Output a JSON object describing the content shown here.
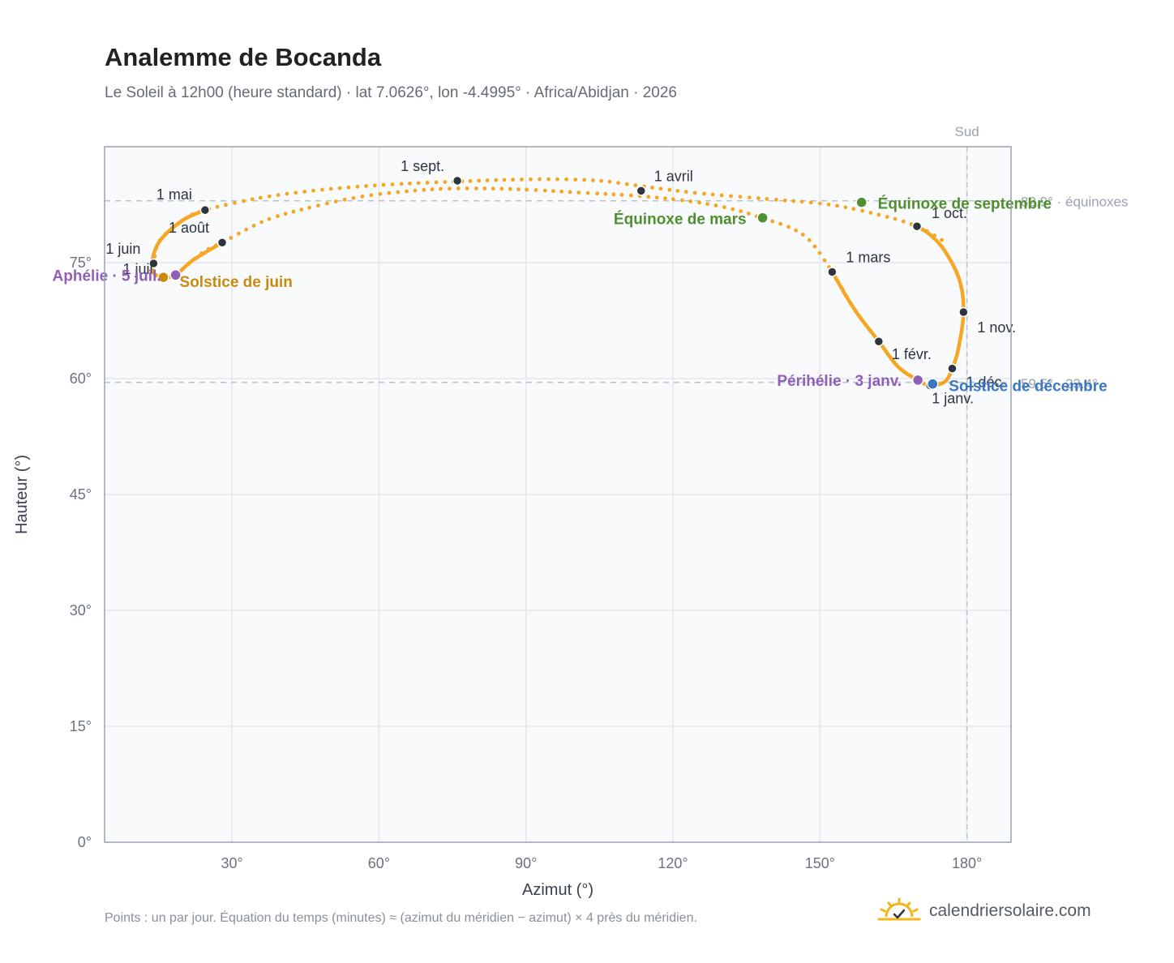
{
  "title": "Analemme de Bocanda",
  "subtitle": "Le Soleil à 12h00 (heure standard) · lat 7.0626°, lon -4.4995° · Africa/Abidjan · 2026",
  "footnote": "Points : un par jour. Équation du temps (minutes) ≈ (azimut du méridien − azimut) × 4 près du méridien.",
  "brand": "calendriersolaire.com",
  "colors": {
    "curve": "#f5a623",
    "month_marker": "#2d3440",
    "equinox": "#4f8f2f",
    "june_solstice": "#c98a10",
    "december_solstice": "#3a78c0",
    "apsis": "#9060b8",
    "plot_bg": "#f8fafc",
    "grid": "#e2e7ed",
    "axis": "#9aa3af",
    "ref_line": "#b7c2cb"
  },
  "chart_data": {
    "type": "scatter",
    "xlabel": "Azimut (°)",
    "ylabel": "Hauteur (°)",
    "xlim": [
      4,
      189
    ],
    "ylim": [
      0,
      90
    ],
    "x_ticks": [
      30,
      60,
      90,
      120,
      150,
      180
    ],
    "x_tick_labels": [
      "30°",
      "60°",
      "90°",
      "120°",
      "150°",
      "180°"
    ],
    "y_ticks": [
      0,
      15,
      30,
      45,
      60,
      75
    ],
    "y_tick_labels": [
      "0°",
      "15°",
      "30°",
      "45°",
      "60°",
      "75°"
    ],
    "grid": true,
    "south_line": {
      "x": 180,
      "label": "Sud"
    },
    "reference_lines": [
      {
        "y": 83.0,
        "label": "82.9° · équinoxes"
      },
      {
        "y": 59.5,
        "label": "59.5° · 23.4°"
      }
    ],
    "series": [
      {
        "style": "dotted",
        "points": [
          [
            14.0,
            73.7
          ],
          [
            15.0,
            77.6
          ],
          [
            20.0,
            80.5
          ],
          [
            24.5,
            81.8
          ],
          [
            35.0,
            83.3
          ],
          [
            45.0,
            84.2
          ],
          [
            55.0,
            84.8
          ],
          [
            65.0,
            85.2
          ],
          [
            76.0,
            85.5
          ],
          [
            85.0,
            85.7
          ],
          [
            95.0,
            85.8
          ],
          [
            105.0,
            85.6
          ],
          [
            113.5,
            84.9
          ],
          [
            125.0,
            84.0
          ],
          [
            140.0,
            83.2
          ],
          [
            152.0,
            82.5
          ],
          [
            162.0,
            81.2
          ],
          [
            169.8,
            79.7
          ],
          [
            176.0,
            77.5
          ]
        ]
      },
      {
        "style": "dotted",
        "points": [
          [
            18.5,
            73.4
          ],
          [
            24.0,
            76.3
          ],
          [
            28.0,
            77.6
          ],
          [
            37.0,
            80.5
          ],
          [
            47.0,
            82.3
          ],
          [
            57.0,
            83.6
          ],
          [
            67.0,
            84.3
          ],
          [
            76.0,
            84.6
          ],
          [
            88.0,
            84.5
          ],
          [
            100.0,
            84.1
          ],
          [
            113.5,
            83.6
          ],
          [
            125.0,
            82.8
          ],
          [
            133.0,
            81.8
          ],
          [
            138.0,
            80.8
          ],
          [
            144.0,
            79.5
          ],
          [
            148.0,
            77.8
          ],
          [
            152.5,
            73.8
          ],
          [
            157.0,
            69.0
          ],
          [
            162.0,
            64.8
          ],
          [
            166.0,
            61.5
          ],
          [
            170.0,
            59.8
          ]
        ]
      },
      {
        "style": "solid",
        "points": [
          [
            24.5,
            81.8
          ],
          [
            20.0,
            80.5
          ],
          [
            15.5,
            78.0
          ],
          [
            13.8,
            75.5
          ],
          [
            14.0,
            73.7
          ],
          [
            16.0,
            73.1
          ],
          [
            18.5,
            73.4
          ],
          [
            22.0,
            75.3
          ],
          [
            28.0,
            77.6
          ]
        ]
      },
      {
        "style": "solid",
        "points": [
          [
            152.5,
            73.8
          ],
          [
            157.0,
            69.0
          ],
          [
            162.0,
            64.8
          ],
          [
            166.0,
            61.5
          ],
          [
            170.0,
            59.8
          ],
          [
            172.5,
            59.1
          ],
          [
            175.5,
            59.6
          ],
          [
            177.0,
            61.3
          ],
          [
            178.3,
            64.0
          ],
          [
            179.3,
            68.6
          ],
          [
            178.5,
            72.7
          ],
          [
            175.5,
            76.5
          ],
          [
            172.5,
            78.6
          ],
          [
            169.8,
            79.7
          ]
        ]
      }
    ],
    "month_markers": [
      {
        "label": "1 janv.",
        "x": 172.5,
        "y": 59.1
      },
      {
        "label": "1 févr.",
        "x": 162.0,
        "y": 64.8
      },
      {
        "label": "1 mars",
        "x": 152.5,
        "y": 73.8
      },
      {
        "label": "1 avril",
        "x": 113.5,
        "y": 84.3
      },
      {
        "label": "1 mai",
        "x": 24.5,
        "y": 81.8
      },
      {
        "label": "1 juin",
        "x": 14.0,
        "y": 74.9
      },
      {
        "label": "1 juil.",
        "x": 16.0,
        "y": 73.1
      },
      {
        "label": "1 août",
        "x": 28.0,
        "y": 77.6
      },
      {
        "label": "1 sept.",
        "x": 76.0,
        "y": 85.6
      },
      {
        "label": "1 oct.",
        "x": 169.8,
        "y": 79.7
      },
      {
        "label": "1 nov.",
        "x": 179.3,
        "y": 68.6
      },
      {
        "label": "1 déc.",
        "x": 177.0,
        "y": 61.3
      }
    ],
    "events": [
      {
        "label": "Équinoxe de mars",
        "x": 138.3,
        "y": 80.8,
        "kind": "equinox"
      },
      {
        "label": "Équinoxe de septembre",
        "x": 158.5,
        "y": 82.8,
        "kind": "equinox"
      },
      {
        "label": "Solstice de juin",
        "x": 16.0,
        "y": 73.1,
        "kind": "june_solstice"
      },
      {
        "label": "Solstice de décembre",
        "x": 173.0,
        "y": 59.3,
        "kind": "december_solstice"
      },
      {
        "label": "Aphélie · 5 juil.",
        "x": 18.5,
        "y": 73.4,
        "kind": "apsis"
      },
      {
        "label": "Périhélie · 3 janv.",
        "x": 170.0,
        "y": 59.8,
        "kind": "apsis"
      }
    ]
  }
}
